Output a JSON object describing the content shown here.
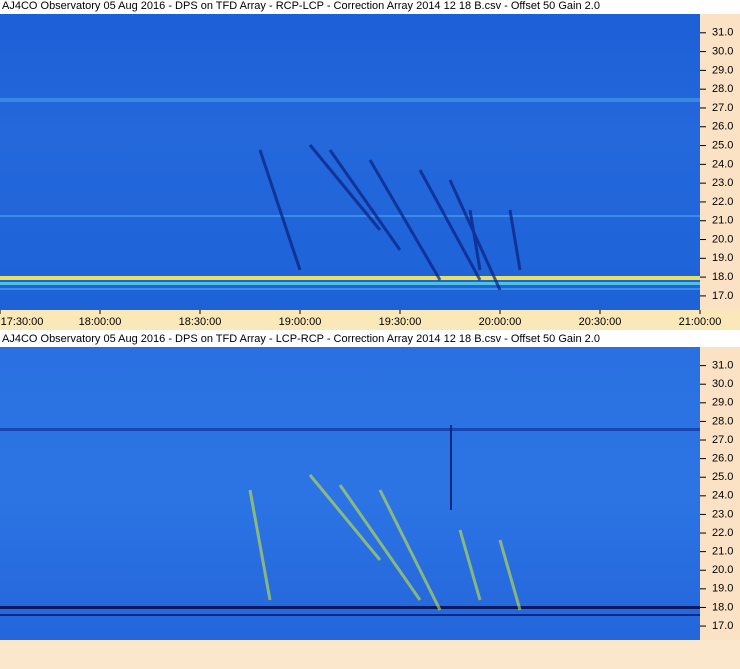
{
  "chart_data": [
    {
      "type": "spectrogram",
      "title": "AJ4CO Observatory 05 Aug 2016  -  DPS on TFD Array  -  RCP-LCP  -  Correction Array 2014 12 18 B.csv  -  Offset 50  Gain 2.0",
      "xlim": [
        17.5,
        21.0
      ],
      "xticks": [
        {
          "value": 17.5,
          "label": "17:30:00"
        },
        {
          "value": 18.0,
          "label": "18:00:00"
        },
        {
          "value": 18.5,
          "label": "18:30:00"
        },
        {
          "value": 19.0,
          "label": "19:00:00"
        },
        {
          "value": 19.5,
          "label": "19:30:00"
        },
        {
          "value": 20.0,
          "label": "20:00:00"
        },
        {
          "value": 20.5,
          "label": "20:30:00"
        },
        {
          "value": 21.0,
          "label": "21:00:00"
        }
      ],
      "ylim": [
        16.25,
        32.0
      ],
      "yticks": [
        {
          "value": 17,
          "label": "17.0"
        },
        {
          "value": 18,
          "label": "18.0"
        },
        {
          "value": 19,
          "label": "19.0"
        },
        {
          "value": 20,
          "label": "20.0"
        },
        {
          "value": 21,
          "label": "21.0"
        },
        {
          "value": 22,
          "label": "22.0"
        },
        {
          "value": 23,
          "label": "23.0"
        },
        {
          "value": 24,
          "label": "24.0"
        },
        {
          "value": 25,
          "label": "25.0"
        },
        {
          "value": 26,
          "label": "26.0"
        },
        {
          "value": 27,
          "label": "27.0"
        },
        {
          "value": 28,
          "label": "28.0"
        },
        {
          "value": 29,
          "label": "29.0"
        },
        {
          "value": 30,
          "label": "30.0"
        },
        {
          "value": 31,
          "label": "31.0"
        }
      ]
    },
    {
      "type": "spectrogram",
      "title": "AJ4CO Observatory 05 Aug 2016  -  DPS on TFD Array  -  LCP-RCP  -  Correction Array 2014 12 18 B.csv  -  Offset 50  Gain 2.0",
      "ylim": [
        16.25,
        32.0
      ],
      "yticks": [
        {
          "value": 17,
          "label": "17.0"
        },
        {
          "value": 18,
          "label": "18.0"
        },
        {
          "value": 19,
          "label": "19.0"
        },
        {
          "value": 20,
          "label": "20.0"
        },
        {
          "value": 21,
          "label": "21.0"
        },
        {
          "value": 22,
          "label": "22.0"
        },
        {
          "value": 23,
          "label": "23.0"
        },
        {
          "value": 24,
          "label": "24.0"
        },
        {
          "value": 25,
          "label": "25.0"
        },
        {
          "value": 26,
          "label": "26.0"
        },
        {
          "value": 27,
          "label": "27.0"
        },
        {
          "value": 28,
          "label": "28.0"
        },
        {
          "value": 29,
          "label": "29.0"
        },
        {
          "value": 30,
          "label": "30.0"
        },
        {
          "value": 31,
          "label": "31.0"
        }
      ]
    }
  ]
}
